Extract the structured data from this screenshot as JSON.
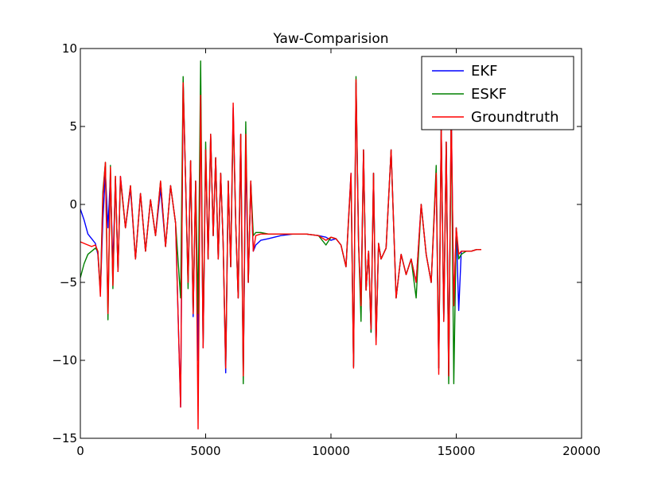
{
  "chart_data": {
    "type": "line",
    "title": "Yaw-Comparision",
    "xlabel": "",
    "ylabel": "",
    "xlim": [
      0,
      20000
    ],
    "ylim": [
      -15,
      10
    ],
    "xticks": [
      0,
      5000,
      10000,
      15000,
      20000
    ],
    "xtick_labels": [
      "0",
      "5000",
      "10000",
      "15000",
      "20000"
    ],
    "yticks": [
      -15,
      -10,
      -5,
      0,
      5,
      10
    ],
    "ytick_labels": [
      "−15",
      "−10",
      "−5",
      "0",
      "5",
      "10"
    ],
    "grid": false,
    "legend": "top-right",
    "series": [
      {
        "name": "EKF",
        "color": "#0000ff",
        "x": [
          0,
          150,
          300,
          450,
          600,
          700,
          800,
          900,
          1000,
          1100,
          1200,
          1300,
          1400,
          1500,
          1600,
          1800,
          2000,
          2200,
          2400,
          2600,
          2800,
          3000,
          3200,
          3400,
          3600,
          3800,
          4000,
          4100,
          4200,
          4300,
          4400,
          4500,
          4600,
          4700,
          4800,
          4900,
          5000,
          5100,
          5200,
          5300,
          5400,
          5500,
          5600,
          5700,
          5800,
          5900,
          6000,
          6100,
          6200,
          6300,
          6400,
          6500,
          6600,
          6700,
          6800,
          6900,
          7000,
          7200,
          7500,
          8000,
          8500,
          9000,
          9500,
          9800,
          10000,
          10200,
          10400,
          10600,
          10800,
          10900,
          11000,
          11100,
          11200,
          11300,
          11400,
          11500,
          11600,
          11700,
          11800,
          11900,
          12000,
          12200,
          12400,
          12600,
          12800,
          13000,
          13200,
          13400,
          13600,
          13800,
          14000,
          14200,
          14300,
          14400,
          14500,
          14600,
          14700,
          14800,
          14900,
          15000,
          15100,
          15200,
          15400,
          15600,
          15800,
          16000
        ],
        "y": [
          -0.3,
          -1.0,
          -1.9,
          -2.2,
          -2.5,
          -3.2,
          -5.6,
          -1.0,
          2.0,
          -1.5,
          1.8,
          -4.0,
          1.6,
          -4.3,
          1.8,
          -1.5,
          1.0,
          -3.5,
          0.7,
          -3.0,
          0.3,
          -2.0,
          1.0,
          -2.7,
          1.2,
          -1.2,
          -13.0,
          7.8,
          1.5,
          -5.0,
          2.8,
          -7.2,
          1.5,
          -10.0,
          6.8,
          -9.2,
          3.5,
          -3.5,
          4.5,
          -2.0,
          3.0,
          -3.5,
          2.0,
          -2.5,
          -10.8,
          1.5,
          -4.0,
          6.2,
          -1.2,
          -6.0,
          4.5,
          -10.8,
          3.2,
          -5.0,
          1.5,
          -3.0,
          -2.6,
          -2.3,
          -2.2,
          -2.0,
          -1.9,
          -1.9,
          -2.0,
          -2.1,
          -2.3,
          -2.2,
          -2.6,
          -4.0,
          2.0,
          -10.4,
          7.8,
          -2.5,
          -6.5,
          3.5,
          -5.5,
          -3.0,
          -8.2,
          2.0,
          -8.8,
          -2.5,
          -3.5,
          -2.8,
          3.5,
          -6.0,
          -3.2,
          -4.5,
          -3.5,
          -5.0,
          0.0,
          -3.2,
          -5.0,
          2.0,
          -10.5,
          5.0,
          -7.5,
          4.0,
          -11.0,
          6.0,
          -6.5,
          -1.5,
          -6.8,
          -3.0,
          -3.0,
          -3.0,
          -2.9,
          -2.9
        ]
      },
      {
        "name": "ESKF",
        "color": "#008000",
        "x": [
          0,
          150,
          300,
          450,
          600,
          700,
          800,
          900,
          1000,
          1100,
          1200,
          1300,
          1400,
          1500,
          1600,
          1800,
          2000,
          2200,
          2400,
          2600,
          2800,
          3000,
          3200,
          3400,
          3600,
          3800,
          4000,
          4100,
          4200,
          4300,
          4400,
          4500,
          4600,
          4700,
          4800,
          4900,
          5000,
          5100,
          5200,
          5300,
          5400,
          5500,
          5600,
          5700,
          5800,
          5900,
          6000,
          6100,
          6200,
          6300,
          6400,
          6500,
          6600,
          6700,
          6800,
          6900,
          7000,
          7200,
          7500,
          8000,
          8500,
          9000,
          9500,
          9800,
          10000,
          10200,
          10400,
          10600,
          10800,
          10900,
          11000,
          11100,
          11200,
          11300,
          11400,
          11500,
          11600,
          11700,
          11800,
          11900,
          12000,
          12200,
          12400,
          12600,
          12800,
          13000,
          13200,
          13400,
          13600,
          13800,
          14000,
          14200,
          14300,
          14400,
          14500,
          14600,
          14700,
          14800,
          14900,
          15000,
          15100,
          15200,
          15400,
          15600,
          15800,
          16000
        ],
        "y": [
          -4.7,
          -3.8,
          -3.2,
          -3.0,
          -2.8,
          -3.0,
          -5.5,
          0.8,
          2.7,
          -7.4,
          2.5,
          -5.4,
          1.8,
          -4.3,
          1.6,
          -1.5,
          1.2,
          -3.5,
          0.7,
          -3.0,
          0.3,
          -2.0,
          1.5,
          -2.7,
          1.2,
          -1.2,
          -6.0,
          8.2,
          1.5,
          -5.4,
          2.8,
          -7.0,
          1.5,
          -7.0,
          9.2,
          -9.0,
          4.0,
          -3.5,
          4.5,
          -2.0,
          3.0,
          -3.5,
          2.0,
          -2.5,
          -10.5,
          1.5,
          -4.0,
          5.8,
          -1.2,
          -6.0,
          4.5,
          -11.5,
          5.3,
          -5.0,
          1.5,
          -2.0,
          -1.8,
          -1.8,
          -1.9,
          -1.9,
          -1.9,
          -1.9,
          -2.0,
          -2.6,
          -2.1,
          -2.2,
          -2.6,
          -4.0,
          1.8,
          -10.4,
          8.2,
          -2.5,
          -7.5,
          3.5,
          -5.5,
          -3.0,
          -8.2,
          2.0,
          -8.8,
          -2.5,
          -3.5,
          -2.8,
          3.5,
          -6.0,
          -3.2,
          -4.5,
          -3.5,
          -6.0,
          0.0,
          -3.2,
          -5.0,
          2.5,
          -10.5,
          5.0,
          -7.5,
          4.0,
          -11.5,
          6.0,
          -11.5,
          -1.5,
          -3.5,
          -3.2,
          -3.0,
          -3.0,
          -2.9,
          -2.9
        ]
      },
      {
        "name": "Groundtruth",
        "color": "#ff0000",
        "x": [
          0,
          150,
          300,
          450,
          600,
          700,
          800,
          900,
          1000,
          1100,
          1200,
          1300,
          1400,
          1500,
          1600,
          1800,
          2000,
          2200,
          2400,
          2600,
          2800,
          3000,
          3200,
          3400,
          3600,
          3800,
          4000,
          4100,
          4200,
          4300,
          4400,
          4500,
          4600,
          4700,
          4800,
          4900,
          5000,
          5100,
          5200,
          5300,
          5400,
          5500,
          5600,
          5700,
          5800,
          5900,
          6000,
          6100,
          6200,
          6300,
          6400,
          6500,
          6600,
          6700,
          6800,
          6900,
          7000,
          7200,
          7500,
          8000,
          8500,
          9000,
          9500,
          9800,
          10000,
          10200,
          10400,
          10600,
          10800,
          10900,
          11000,
          11100,
          11200,
          11300,
          11400,
          11500,
          11600,
          11700,
          11800,
          11900,
          12000,
          12200,
          12400,
          12600,
          12800,
          13000,
          13200,
          13400,
          13600,
          13800,
          14000,
          14200,
          14300,
          14400,
          14500,
          14600,
          14700,
          14800,
          14900,
          15000,
          15100,
          15200,
          15400,
          15600,
          15800,
          16000
        ],
        "y": [
          -2.4,
          -2.5,
          -2.6,
          -2.7,
          -2.6,
          -3.0,
          -5.9,
          0.5,
          2.7,
          -7.0,
          2.4,
          -5.2,
          1.8,
          -4.3,
          1.8,
          -1.5,
          1.2,
          -3.5,
          0.7,
          -3.0,
          0.3,
          -2.0,
          1.5,
          -2.7,
          1.2,
          -1.2,
          -13.0,
          7.8,
          1.5,
          -5.0,
          2.8,
          -7.0,
          1.5,
          -14.4,
          7.0,
          -9.2,
          3.5,
          -3.5,
          4.5,
          -2.0,
          3.0,
          -3.5,
          2.0,
          -2.5,
          -10.5,
          1.5,
          -4.0,
          6.5,
          -1.2,
          -6.0,
          4.5,
          -11.0,
          4.5,
          -5.0,
          1.5,
          -3.0,
          -2.0,
          -1.9,
          -1.9,
          -1.9,
          -1.9,
          -1.9,
          -2.0,
          -2.3,
          -2.1,
          -2.2,
          -2.6,
          -4.0,
          2.0,
          -10.5,
          8.0,
          -2.5,
          -6.5,
          3.5,
          -5.5,
          -3.0,
          -8.0,
          2.0,
          -9.0,
          -2.5,
          -3.5,
          -2.8,
          3.5,
          -6.0,
          -3.2,
          -4.5,
          -3.5,
          -5.0,
          0.0,
          -3.2,
          -5.0,
          2.0,
          -10.9,
          5.0,
          -7.5,
          4.0,
          -11.0,
          6.0,
          -6.5,
          -1.5,
          -3.2,
          -3.0,
          -3.0,
          -3.0,
          -2.9,
          -2.9
        ]
      }
    ]
  }
}
